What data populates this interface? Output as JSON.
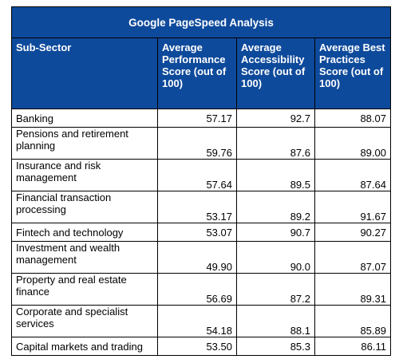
{
  "title": "Google PageSpeed Analysis",
  "columns": [
    "Sub-Sector",
    "Average Performance Score (out of 100)",
    "Average Accessibility Score (out of 100)",
    "Average Best Practices Score (out of 100)"
  ],
  "rows": [
    {
      "sector": "Banking",
      "performance": "57.17",
      "accessibility": "92.7",
      "best_practices": "88.07"
    },
    {
      "sector": "Pensions and retirement planning",
      "performance": "59.76",
      "accessibility": "87.6",
      "best_practices": "89.00"
    },
    {
      "sector": "Insurance and risk management",
      "performance": "57.64",
      "accessibility": "89.5",
      "best_practices": "87.64"
    },
    {
      "sector": "Financial transaction processing",
      "performance": "53.17",
      "accessibility": "89.2",
      "best_practices": "91.67"
    },
    {
      "sector": "Fintech and technology",
      "performance": "53.07",
      "accessibility": "90.7",
      "best_practices": "90.27"
    },
    {
      "sector": "Investment and wealth management",
      "performance": "49.90",
      "accessibility": "90.0",
      "best_practices": "87.07"
    },
    {
      "sector": "Property and real estate finance",
      "performance": "56.69",
      "accessibility": "87.2",
      "best_practices": "89.31"
    },
    {
      "sector": "Corporate and specialist services",
      "performance": "54.18",
      "accessibility": "88.1",
      "best_practices": "85.89"
    },
    {
      "sector": "Capital markets and trading",
      "performance": "53.50",
      "accessibility": "85.3",
      "best_practices": "86.11"
    }
  ],
  "colors": {
    "header_background": "#0e4a9b",
    "header_text": "#ffffff",
    "border": "#000000"
  }
}
